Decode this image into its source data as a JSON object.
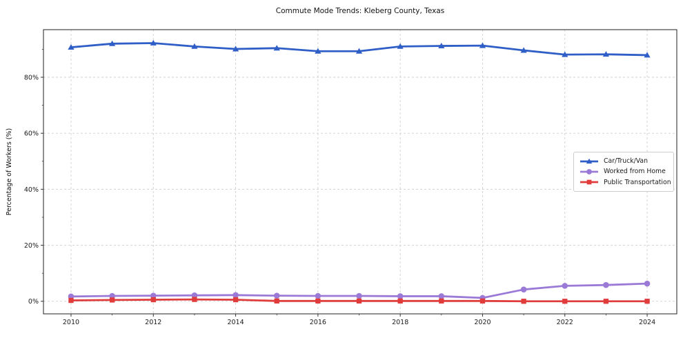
{
  "chart_data": {
    "type": "line",
    "title": "Commute Mode Trends: Kleberg County, Texas",
    "xlabel": "",
    "ylabel": "Percentage of Workers (%)",
    "x": [
      2010,
      2011,
      2012,
      2013,
      2014,
      2015,
      2016,
      2017,
      2018,
      2019,
      2020,
      2021,
      2022,
      2023,
      2024
    ],
    "series": [
      {
        "name": "Car/Truck/Van",
        "color": "#2e5ec6",
        "marker": "triangle",
        "values": [
          90.7,
          92.0,
          92.2,
          91.0,
          90.1,
          90.4,
          89.3,
          89.3,
          91.0,
          91.2,
          91.3,
          89.6,
          88.1,
          88.2,
          87.9
        ]
      },
      {
        "name": "Worked from Home",
        "color": "#9a7ad6",
        "marker": "circle",
        "values": [
          1.7,
          1.9,
          2.0,
          2.1,
          2.2,
          2.0,
          1.9,
          1.9,
          1.8,
          1.8,
          1.2,
          4.2,
          5.5,
          5.8,
          6.3
        ]
      },
      {
        "name": "Public Transportation",
        "color": "#e03c3c",
        "marker": "square",
        "values": [
          0.3,
          0.45,
          0.55,
          0.65,
          0.55,
          0.1,
          0.1,
          0.1,
          0.1,
          0.1,
          0.1,
          0.0,
          0.0,
          0.0,
          0.0
        ]
      }
    ],
    "xticks": [
      2010,
      2012,
      2014,
      2016,
      2018,
      2020,
      2022,
      2024
    ],
    "yticks": [
      0,
      20,
      40,
      60,
      80
    ],
    "ytick_suffix": "%",
    "xlim": [
      2009.33,
      2024.72
    ],
    "ylim": [
      -4.5,
      97.0
    ],
    "grid": true,
    "grid_style": "dashed",
    "legend_position": "center right",
    "colors": {
      "grid": "#cfcfcf",
      "frame": "#333333",
      "tick_text": "#1a1a1a"
    }
  }
}
